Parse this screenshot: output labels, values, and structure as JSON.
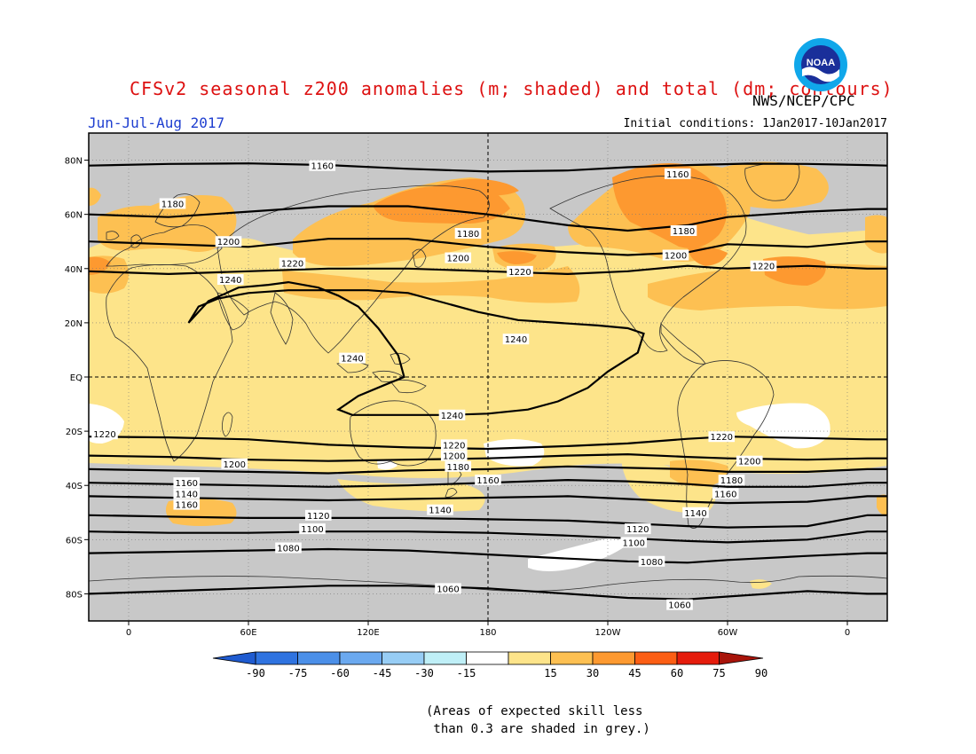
{
  "header": {
    "title": "CFSv2 seasonal z200 anomalies (m; shaded) and total (dm; contours)",
    "agency": "NWS/NCEP/CPC",
    "season": "Jun-Jul-Aug 2017",
    "initial_conditions": "Initial conditions: 1Jan2017-10Jan2017",
    "logo_text": "NOAA"
  },
  "map": {
    "lat_ticks": [
      "80N",
      "60N",
      "40N",
      "20N",
      "EQ",
      "20S",
      "40S",
      "60S",
      "80S"
    ],
    "lat_values": [
      80,
      60,
      40,
      20,
      0,
      -20,
      -40,
      -60,
      -80
    ],
    "lon_ticks": [
      "0",
      "60E",
      "120E",
      "180",
      "120W",
      "60W",
      "0"
    ],
    "lon_values": [
      0,
      60,
      120,
      180,
      240,
      300,
      360
    ],
    "contours": [
      {
        "label": "1160",
        "lat": [
          78,
          78.6,
          78.8,
          78.2,
          76.8,
          75.8,
          76.2,
          77.4,
          78.2,
          78.7,
          78.6,
          78.2,
          78.0
        ],
        "lon": [
          -20,
          20,
          60,
          100,
          140,
          180,
          220,
          250,
          280,
          310,
          340,
          370,
          380
        ],
        "labels_at": [
          {
            "lon": 97,
            "lat": 78
          },
          {
            "lon": 275,
            "lat": 75
          }
        ]
      },
      {
        "label": "1180",
        "lat": [
          60,
          59,
          61,
          63,
          63,
          60,
          56,
          54,
          56,
          59,
          61,
          62,
          62
        ],
        "lon": [
          -20,
          20,
          60,
          100,
          140,
          180,
          220,
          250,
          280,
          300,
          340,
          370,
          380
        ],
        "labels_at": [
          {
            "lon": 22,
            "lat": 64
          },
          {
            "lon": 170,
            "lat": 53
          },
          {
            "lon": 278,
            "lat": 54
          }
        ]
      },
      {
        "label": "1200",
        "lat": [
          50,
          49,
          48,
          51,
          51,
          48,
          46,
          45,
          46,
          49,
          48,
          50,
          50
        ],
        "lon": [
          -20,
          20,
          60,
          100,
          140,
          180,
          220,
          250,
          280,
          300,
          340,
          370,
          380
        ],
        "labels_at": [
          {
            "lon": 50,
            "lat": 50
          },
          {
            "lon": 165,
            "lat": 44
          },
          {
            "lon": 274,
            "lat": 45
          }
        ]
      },
      {
        "label": "1220",
        "lat": [
          39,
          38,
          39,
          40,
          40,
          39,
          38,
          39,
          41,
          40,
          41,
          40,
          40
        ],
        "lon": [
          -20,
          20,
          60,
          100,
          140,
          180,
          220,
          250,
          280,
          300,
          340,
          370,
          380
        ],
        "labels_at": [
          {
            "lon": 82,
            "lat": 42
          },
          {
            "lon": 196,
            "lat": 39
          },
          {
            "lon": 318,
            "lat": 41
          }
        ]
      },
      {
        "label": "1220",
        "lat": [
          -22,
          -22.3,
          -23,
          -25,
          -26,
          -26.5,
          -25.5,
          -24.5,
          -22.8,
          -22,
          -22.5,
          -23,
          -23
        ],
        "lon": [
          -20,
          20,
          60,
          100,
          140,
          180,
          220,
          250,
          280,
          300,
          340,
          370,
          380
        ],
        "labels_at": [
          {
            "lon": -12,
            "lat": -21
          },
          {
            "lon": 163,
            "lat": -25
          },
          {
            "lon": 297,
            "lat": -22
          }
        ]
      },
      {
        "label": "1200",
        "lat": [
          -29,
          -29.5,
          -30.5,
          -31,
          -30.5,
          -30,
          -29,
          -28.5,
          -29.5,
          -30,
          -30.5,
          -30,
          -30
        ],
        "lon": [
          -20,
          20,
          60,
          100,
          140,
          180,
          220,
          250,
          280,
          300,
          340,
          370,
          380
        ],
        "labels_at": [
          {
            "lon": 53,
            "lat": -32
          },
          {
            "lon": 163,
            "lat": -29
          },
          {
            "lon": 311,
            "lat": -31
          }
        ]
      },
      {
        "label": "1180",
        "lat": [
          -34,
          -34.5,
          -35,
          -35.5,
          -34.5,
          -34,
          -33,
          -33.5,
          -34,
          -35,
          -35,
          -34,
          -34
        ],
        "lon": [
          -20,
          20,
          60,
          100,
          140,
          180,
          220,
          250,
          280,
          300,
          340,
          370,
          380
        ],
        "labels_at": [
          {
            "lon": 165,
            "lat": -33
          },
          {
            "lon": 302,
            "lat": -38
          }
        ]
      },
      {
        "label": "1160",
        "lat": [
          -39,
          -39.5,
          -40,
          -40.5,
          -40,
          -39,
          -38,
          -38.5,
          -39.5,
          -40.5,
          -40.5,
          -39,
          -39
        ],
        "lon": [
          -20,
          20,
          60,
          100,
          140,
          180,
          220,
          250,
          280,
          300,
          340,
          370,
          380
        ],
        "labels_at": [
          {
            "lon": 29,
            "lat": -39
          },
          {
            "lon": 180,
            "lat": -38
          },
          {
            "lon": 299,
            "lat": -43
          }
        ]
      },
      {
        "label": "1140",
        "lat": [
          -44,
          -44.5,
          -45,
          -45.5,
          -45,
          -44.5,
          -44,
          -45,
          -46,
          -46.5,
          -46,
          -44,
          -44
        ],
        "lon": [
          -20,
          20,
          60,
          100,
          140,
          180,
          220,
          250,
          280,
          300,
          340,
          370,
          380
        ],
        "labels_at": [
          {
            "lon": 29,
            "lat": -43
          },
          {
            "lon": 156,
            "lat": -49
          },
          {
            "lon": 284,
            "lat": -50
          }
        ]
      },
      {
        "label": "1160",
        "lat": [
          -47,
          -48
        ],
        "lon": [
          30,
          31
        ],
        "labels_at": [
          {
            "lon": 29,
            "lat": -47
          }
        ]
      },
      {
        "label": "1120",
        "lat": [
          -51,
          -51.5,
          -52,
          -52,
          -52,
          -52.5,
          -53,
          -54,
          -55,
          -55.5,
          -55,
          -51,
          -51
        ],
        "lon": [
          -20,
          20,
          60,
          100,
          140,
          180,
          220,
          250,
          280,
          300,
          340,
          370,
          380
        ],
        "labels_at": [
          {
            "lon": 95,
            "lat": -51
          },
          {
            "lon": 255,
            "lat": -56
          }
        ]
      },
      {
        "label": "1100",
        "lat": [
          -57,
          -57.5,
          -57.5,
          -57,
          -57,
          -57.5,
          -58.5,
          -59.5,
          -60.5,
          -61,
          -60,
          -57,
          -57
        ],
        "lon": [
          -20,
          20,
          60,
          100,
          140,
          180,
          220,
          250,
          280,
          300,
          340,
          370,
          380
        ],
        "labels_at": [
          {
            "lon": 92,
            "lat": -56
          },
          {
            "lon": 253,
            "lat": -61
          }
        ]
      },
      {
        "label": "1080",
        "lat": [
          -65,
          -64.5,
          -64,
          -63.5,
          -64,
          -65.5,
          -67,
          -68,
          -68.5,
          -67.5,
          -66,
          -65,
          -65
        ],
        "lon": [
          -20,
          20,
          60,
          100,
          140,
          180,
          220,
          250,
          280,
          300,
          340,
          370,
          380
        ],
        "labels_at": [
          {
            "lon": 80,
            "lat": -63
          },
          {
            "lon": 262,
            "lat": -68
          }
        ]
      },
      {
        "label": "1060",
        "lat": [
          -80,
          -79,
          -78,
          -77,
          -77,
          -78,
          -80,
          -81.5,
          -82,
          -81,
          -79,
          -80,
          -80
        ],
        "lon": [
          -20,
          20,
          60,
          100,
          140,
          180,
          220,
          250,
          280,
          300,
          340,
          370,
          380
        ],
        "labels_at": [
          {
            "lon": 160,
            "lat": -78
          },
          {
            "lon": 276,
            "lat": -84
          }
        ]
      }
    ],
    "loop_1240": {
      "label": "1240",
      "lon": [
        30,
        40,
        55,
        70,
        80,
        95,
        105,
        115,
        125,
        135,
        138,
        128,
        115,
        105,
        112,
        140,
        160,
        180,
        200,
        215,
        230,
        240,
        255,
        258,
        250,
        235,
        215,
        195,
        175,
        160,
        140,
        120,
        100,
        80,
        60,
        45,
        35,
        30
      ],
      "lat": [
        20,
        28,
        33,
        34,
        35,
        33,
        30,
        26,
        18,
        8,
        0,
        -3,
        -7,
        -12,
        -14,
        -14,
        -14,
        -13.5,
        -12,
        -9,
        -4,
        2,
        9,
        16,
        18,
        19,
        20,
        21,
        24,
        27,
        31,
        32,
        32,
        32,
        31,
        29,
        26,
        20
      ],
      "labels_at": [
        {
          "lon": 51,
          "lat": 36
        },
        {
          "lon": 112,
          "lat": 7
        },
        {
          "lon": 162,
          "lat": -14
        },
        {
          "lon": 194,
          "lat": 14
        }
      ]
    }
  },
  "colorbar": {
    "labels": [
      "-90",
      "-75",
      "-60",
      "-45",
      "-30",
      "-15",
      "15",
      "30",
      "45",
      "60",
      "75",
      "90"
    ],
    "colors": [
      "#1f5bd0",
      "#2f73e0",
      "#4b8fe8",
      "#6ba9ef",
      "#97cdf5",
      "#bfeff7",
      "#ffffff",
      "#fde48a",
      "#fdc052",
      "#fd9930",
      "#fc5e14",
      "#e51c0c",
      "#a8140a"
    ]
  },
  "note": "(Areas of expected skill less\n than 0.3 are shaded in grey.)"
}
